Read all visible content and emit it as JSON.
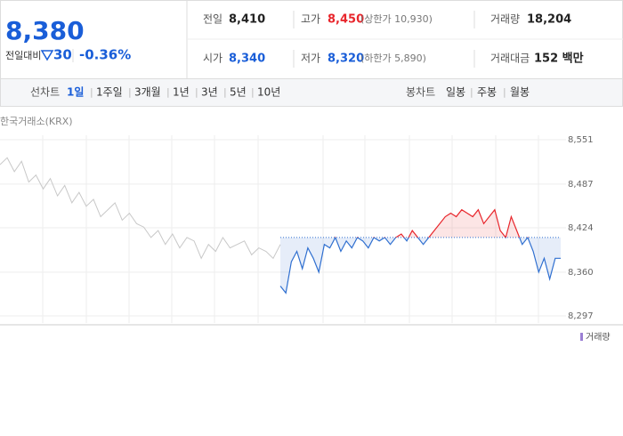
{
  "header": {
    "price": "8,380",
    "change_label": "전일대비",
    "change": "30",
    "change_pct": "-0.36%",
    "rows": [
      [
        {
          "label": "전일",
          "value": "8,410"
        },
        {
          "label": "고가",
          "value": "8,450",
          "note": "(상한가 10,930)"
        },
        {
          "label": "거래량",
          "value": "18,204"
        }
      ],
      [
        {
          "label": "시가",
          "value": "8,340"
        },
        {
          "label": "저가",
          "value": "8,320",
          "note": "(하한가 5,890)"
        },
        {
          "label": "거래대금",
          "value": "152 백만"
        }
      ]
    ]
  },
  "tabs": {
    "line_label": "선차트",
    "line_periods": [
      "1일",
      "1주일",
      "3개월",
      "1년",
      "3년",
      "5년",
      "10년"
    ],
    "candle_label": "봉차트",
    "candle_periods": [
      "일봉",
      "주봉",
      "월봉"
    ]
  },
  "chart": {
    "type": "line",
    "source": "한국거래소(KRX)",
    "volume_legend": "거래량",
    "ylim": [
      8297,
      8551
    ],
    "yticks": [
      {
        "value": 8551,
        "label": "8,551"
      },
      {
        "value": 8487,
        "label": "8,487"
      },
      {
        "value": 8424,
        "label": "8,424"
      },
      {
        "value": 8360,
        "label": "8,360"
      },
      {
        "value": 8297,
        "label": "8,297"
      }
    ],
    "base": 8410,
    "up_color": "#e8262c",
    "down_color": "#2f6fd0",
    "prev_color": "#c8c8c8",
    "previous": [
      8515,
      8525,
      8505,
      8520,
      8490,
      8500,
      8480,
      8495,
      8470,
      8485,
      8460,
      8475,
      8455,
      8465,
      8440,
      8450,
      8460,
      8435,
      8445,
      8430,
      8425,
      8410,
      8420,
      8400,
      8415,
      8395,
      8410,
      8405,
      8380,
      8400,
      8390,
      8410,
      8395,
      8400,
      8405,
      8385,
      8395,
      8390,
      8380,
      8400
    ],
    "today": [
      8340,
      8330,
      8375,
      8390,
      8365,
      8395,
      8380,
      8360,
      8400,
      8395,
      8410,
      8390,
      8405,
      8395,
      8410,
      8405,
      8395,
      8410,
      8405,
      8410,
      8400,
      8410,
      8415,
      8405,
      8420,
      8410,
      8400,
      8410,
      8420,
      8430,
      8440,
      8445,
      8440,
      8450,
      8445,
      8440,
      8450,
      8430,
      8440,
      8450,
      8420,
      8410,
      8440,
      8420,
      8400,
      8410,
      8390,
      8360,
      8380,
      8350,
      8380,
      8380
    ]
  }
}
